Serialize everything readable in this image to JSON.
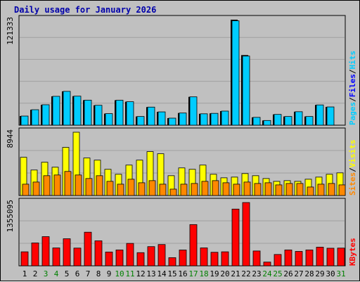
{
  "colors": {
    "background": "#c0c0c0",
    "grid": "#a0a0a0",
    "pages": "#00ccff",
    "hits": "#00ccff",
    "files": "#0000ff",
    "visits": "#ffff00",
    "sites": "#ff8800",
    "kbytes": "#ff0000",
    "weekday_label": "#000000",
    "weekend_label": "#008000",
    "title": "#0000aa"
  },
  "chart_data": {
    "type": "bar",
    "title": "Daily usage for January 2026",
    "categories": [
      "1",
      "2",
      "3",
      "4",
      "5",
      "6",
      "7",
      "8",
      "9",
      "10",
      "11",
      "12",
      "13",
      "14",
      "15",
      "16",
      "17",
      "18",
      "19",
      "20",
      "21",
      "22",
      "23",
      "24",
      "25",
      "26",
      "27",
      "28",
      "29",
      "30",
      "31"
    ],
    "weekend_days": [
      3,
      4,
      10,
      11,
      17,
      18,
      24,
      25,
      31
    ],
    "panels": [
      {
        "name": "hits_files",
        "max_label": "121333",
        "ylim": [
          0,
          121333
        ],
        "side_labels": [
          {
            "text": "Pages",
            "color": "#00ccff"
          },
          {
            "text": "Files",
            "color": "#0000ff"
          },
          {
            "text": "Hits",
            "color": "#00ccff"
          }
        ],
        "series": [
          {
            "name": "Hits",
            "values": [
              10500,
              17800,
              23500,
              33200,
              38900,
              33400,
              28800,
              22900,
              13300,
              28700,
              27000,
              10000,
              20800,
              15300,
              8100,
              14000,
              32600,
              13100,
              13600,
              16200,
              121333,
              80600,
              9000,
              5400,
              12400,
              10000,
              15500,
              10000,
              23300,
              21000,
              0
            ]
          },
          {
            "name": "Files",
            "values": [
              10500,
              17800,
              23500,
              33200,
              38900,
              33400,
              28800,
              22900,
              13300,
              28700,
              27000,
              10000,
              20800,
              15300,
              8100,
              14000,
              32600,
              13100,
              13600,
              16200,
              120100,
              79500,
              9000,
              5400,
              12400,
              10000,
              15500,
              10000,
              23300,
              21000,
              0
            ]
          }
        ]
      },
      {
        "name": "visits_sites",
        "max_label": "8944",
        "ylim": [
          0,
          8944
        ],
        "side_labels": [
          {
            "text": "Sites",
            "color": "#ff8800"
          },
          {
            "text": "Visits",
            "color": "#ffff00"
          }
        ],
        "series": [
          {
            "name": "Visits",
            "values": [
              5400,
              3600,
              4700,
              4000,
              6800,
              8944,
              5300,
              5000,
              3700,
              3000,
              4300,
              5000,
              6200,
              5900,
              2800,
              3900,
              3700,
              4300,
              3000,
              2500,
              2600,
              3100,
              2800,
              2400,
              2000,
              2100,
              2000,
              2300,
              2600,
              3000,
              3200
            ]
          },
          {
            "name": "Sites",
            "values": [
              1600,
              1900,
              2800,
              2900,
              3400,
              2900,
              2400,
              2800,
              2000,
              1600,
              2300,
              1800,
              2100,
              1600,
              900,
              1600,
              1700,
              2000,
              2100,
              1800,
              1600,
              1900,
              1700,
              1800,
              1500,
              1700,
              1700,
              1200,
              1600,
              1700,
              1500
            ]
          }
        ]
      },
      {
        "name": "kbytes",
        "max_label": "1355095",
        "ylim": [
          0,
          1355095
        ],
        "side_labels": [
          {
            "text": "KBytes",
            "color": "#ff0000"
          }
        ],
        "series": [
          {
            "name": "KBytes",
            "values": [
              300000,
              490000,
              625000,
              383000,
              580000,
              380000,
              720000,
              536000,
              296000,
              340000,
              480000,
              282000,
              411000,
              456000,
              175000,
              339000,
              883000,
              384000,
              290000,
              300000,
              1215000,
              1355095,
              318000,
              80000,
              243000,
              340000,
              309000,
              340000,
              400000,
              377000,
              380000
            ]
          }
        ]
      }
    ]
  }
}
